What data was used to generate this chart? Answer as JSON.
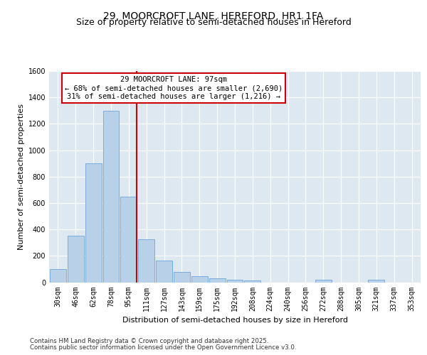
{
  "title1": "29, MOORCROFT LANE, HEREFORD, HR1 1FA",
  "title2": "Size of property relative to semi-detached houses in Hereford",
  "xlabel": "Distribution of semi-detached houses by size in Hereford",
  "ylabel": "Number of semi-detached properties",
  "categories": [
    "30sqm",
    "46sqm",
    "62sqm",
    "78sqm",
    "95sqm",
    "111sqm",
    "127sqm",
    "143sqm",
    "159sqm",
    "175sqm",
    "192sqm",
    "208sqm",
    "224sqm",
    "240sqm",
    "256sqm",
    "272sqm",
    "288sqm",
    "305sqm",
    "321sqm",
    "337sqm",
    "353sqm"
  ],
  "values": [
    100,
    350,
    900,
    1300,
    650,
    325,
    165,
    80,
    45,
    30,
    20,
    15,
    0,
    0,
    0,
    20,
    0,
    0,
    20,
    0,
    0
  ],
  "bar_color": "#b8d0e8",
  "bar_edge_color": "#7aace0",
  "vline_color": "#cc0000",
  "vline_x_index": 4,
  "annotation_box_color": "#cc0000",
  "property_label": "29 MOORCROFT LANE: 97sqm",
  "annotation_line1": "← 68% of semi-detached houses are smaller (2,690)",
  "annotation_line2": "31% of semi-detached houses are larger (1,216) →",
  "ylim": [
    0,
    1600
  ],
  "yticks": [
    0,
    200,
    400,
    600,
    800,
    1000,
    1200,
    1400,
    1600
  ],
  "bg_color": "#dde8f0",
  "footer1": "Contains HM Land Registry data © Crown copyright and database right 2025.",
  "footer2": "Contains public sector information licensed under the Open Government Licence v3.0.",
  "title_fontsize": 10,
  "subtitle_fontsize": 9,
  "axis_label_fontsize": 8,
  "tick_fontsize": 7,
  "annot_fontsize": 7.5,
  "footer_fontsize": 6.2
}
